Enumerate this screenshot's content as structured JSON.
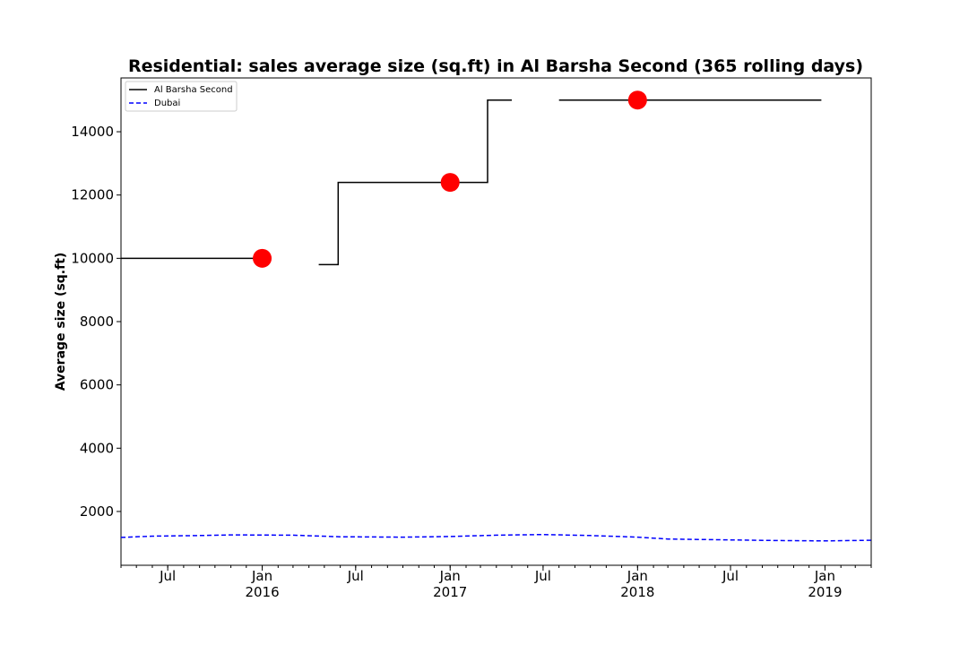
{
  "chart_data": {
    "type": "line",
    "title": "Residential: sales average size (sq.ft) in Al Barsha Second (365 rolling days)",
    "xlabel": "",
    "ylabel": "Average size (sq.ft)",
    "xlim": [
      "2015-04-01",
      "2019-04-01"
    ],
    "ylim": [
      300,
      15700
    ],
    "yticks": [
      2000,
      4000,
      6000,
      8000,
      10000,
      12000,
      14000
    ],
    "xticks": [
      {
        "date": "2015-07-01",
        "label": "Jul",
        "sub": ""
      },
      {
        "date": "2016-01-01",
        "label": "Jan",
        "sub": "2016"
      },
      {
        "date": "2016-07-01",
        "label": "Jul",
        "sub": ""
      },
      {
        "date": "2017-01-01",
        "label": "Jan",
        "sub": "2017"
      },
      {
        "date": "2017-07-01",
        "label": "Jul",
        "sub": ""
      },
      {
        "date": "2018-01-01",
        "label": "Jan",
        "sub": "2018"
      },
      {
        "date": "2018-07-01",
        "label": "Jul",
        "sub": ""
      },
      {
        "date": "2019-01-01",
        "label": "Jan",
        "sub": "2019"
      }
    ],
    "grid": false,
    "legend_position": "top-left",
    "series": [
      {
        "name": "Al Barsha Second",
        "color": "#000000",
        "style": "solid",
        "segments": [
          [
            [
              "2015-04-01",
              10000
            ],
            [
              "2016-01-01",
              10000
            ]
          ],
          [
            [
              "2016-04-20",
              9800
            ],
            [
              "2016-05-28",
              9800
            ],
            [
              "2016-05-28",
              12400
            ],
            [
              "2017-03-15",
              12400
            ],
            [
              "2017-03-15",
              15000
            ],
            [
              "2017-05-01",
              15000
            ]
          ],
          [
            [
              "2017-08-01",
              15000
            ],
            [
              "2018-12-25",
              15000
            ]
          ]
        ]
      },
      {
        "name": "Dubai",
        "color": "#0000ff",
        "style": "dashed",
        "segments": [
          [
            [
              "2015-04-01",
              1180
            ],
            [
              "2015-06-01",
              1220
            ],
            [
              "2015-09-01",
              1240
            ],
            [
              "2015-11-01",
              1260
            ],
            [
              "2016-03-01",
              1250
            ],
            [
              "2016-06-01",
              1200
            ],
            [
              "2016-10-01",
              1190
            ],
            [
              "2017-01-01",
              1210
            ],
            [
              "2017-04-01",
              1250
            ],
            [
              "2017-07-01",
              1270
            ],
            [
              "2017-10-01",
              1240
            ],
            [
              "2018-01-01",
              1190
            ],
            [
              "2018-03-01",
              1130
            ],
            [
              "2018-07-01",
              1100
            ],
            [
              "2018-10-01",
              1080
            ],
            [
              "2019-01-01",
              1070
            ],
            [
              "2019-04-01",
              1090
            ]
          ]
        ]
      }
    ],
    "markers": {
      "color": "#ff0000",
      "points": [
        [
          "2016-01-01",
          10000
        ],
        [
          "2017-01-01",
          12400
        ],
        [
          "2018-01-01",
          15000
        ]
      ]
    }
  }
}
